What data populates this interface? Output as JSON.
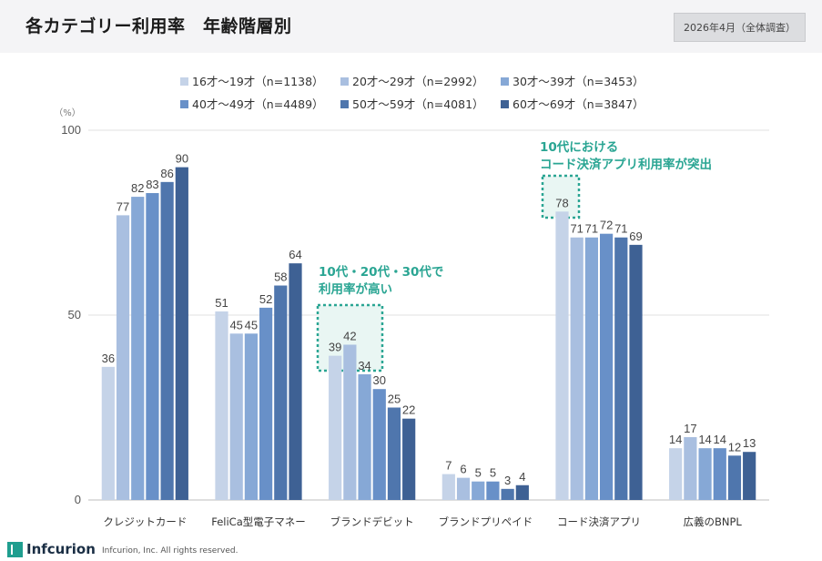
{
  "header": {
    "title": "各カテゴリー利用率　年齢階層別",
    "date_badge": "2026年4月（全体調査）"
  },
  "footer": {
    "logo_text": "Infcurion",
    "copyright": "Infcurion, Inc.  All rights reserved."
  },
  "annotations": [
    {
      "text": "10代・20代・30代で\n利用率が高い"
    },
    {
      "text": "10代における\nコード決済アプリ利用率が突出"
    }
  ],
  "colors": [
    "#c5d3e8",
    "#a9bfe0",
    "#86a8d6",
    "#6890c8",
    "#4f76ad",
    "#3e6194"
  ],
  "chart_data": {
    "type": "bar",
    "ylabel": "（%）",
    "ylim": [
      0,
      100
    ],
    "yticks": [
      0,
      50,
      100
    ],
    "grid": true,
    "legend_position": "top",
    "categories": [
      "クレジットカード",
      "FeliCa型電子マネー",
      "ブランドデビット",
      "ブランドプリペイド",
      "コード決済アプリ",
      "広義のBNPL"
    ],
    "series": [
      {
        "name": "16才〜19才（n=1138）",
        "values": [
          36,
          51,
          39,
          7,
          78,
          14
        ]
      },
      {
        "name": "20才〜29才（n=2992）",
        "values": [
          77,
          45,
          42,
          6,
          71,
          17
        ]
      },
      {
        "name": "30才〜39才（n=3453）",
        "values": [
          82,
          45,
          34,
          5,
          71,
          14
        ]
      },
      {
        "name": "40才〜49才（n=4489）",
        "values": [
          83,
          52,
          30,
          5,
          72,
          14
        ]
      },
      {
        "name": "50才〜59才（n=4081）",
        "values": [
          86,
          58,
          25,
          3,
          71,
          12
        ]
      },
      {
        "name": "60才〜69才（n=3847）",
        "values": [
          90,
          64,
          22,
          4,
          69,
          13
        ]
      }
    ]
  }
}
